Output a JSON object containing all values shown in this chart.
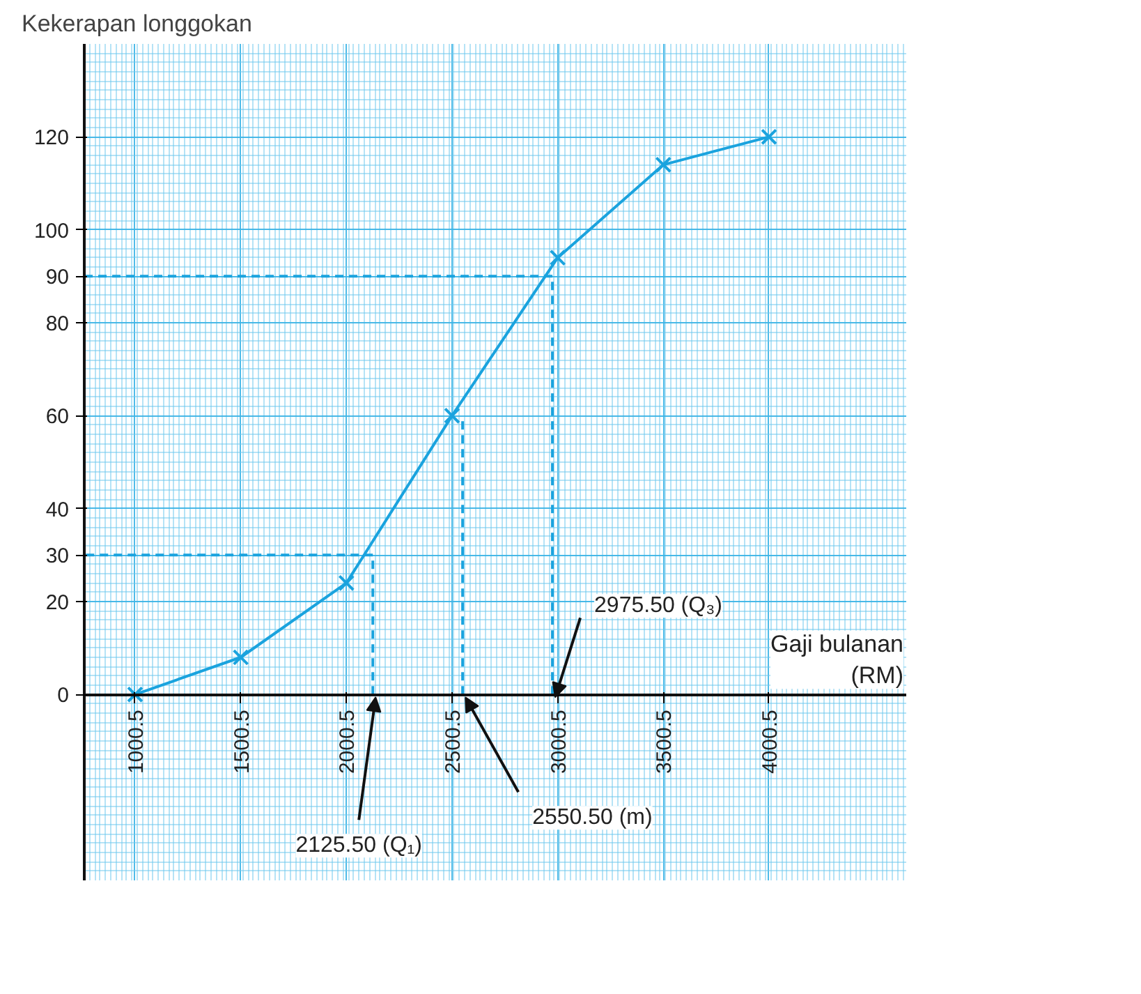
{
  "chart_data": {
    "type": "line",
    "ylabel": "Kekerapan longgokan",
    "xlabel": "Gaji bulanan\n(RM)",
    "xlim": [
      760,
      4650
    ],
    "ylim": [
      -40,
      140
    ],
    "xticks": [
      1000.5,
      1500.5,
      2000.5,
      2500.5,
      3000.5,
      3500.5,
      4000.5
    ],
    "yticks": [
      0,
      20,
      30,
      40,
      60,
      80,
      90,
      100,
      120
    ],
    "grid": true,
    "marker": "cross",
    "line_style": "solid",
    "series": [
      {
        "x": [
          1000.5,
          1500.5,
          2000.5,
          2500.5,
          3000.5,
          3500.5,
          4000.5
        ],
        "values": [
          0,
          8,
          24,
          60,
          94,
          114,
          120
        ],
        "color": "#1aa3de"
      },
      {
        "x": [
          760,
          2125.5,
          2125.5
        ],
        "values": [
          30,
          30,
          0
        ],
        "color": "#1aa3de",
        "line_style": "dashed",
        "marker": "none"
      },
      {
        "x": [
          2550.5,
          2550.5
        ],
        "values": [
          60,
          0
        ],
        "color": "#1aa3de",
        "line_style": "dashed",
        "marker": "none"
      },
      {
        "x": [
          760,
          2975.5,
          2975.5
        ],
        "values": [
          90,
          90,
          0
        ],
        "color": "#1aa3de",
        "line_style": "dashed",
        "marker": "none"
      }
    ],
    "annotations": [
      {
        "text": "2125.50 (Q₁)",
        "x": 2125.5,
        "y": 0
      },
      {
        "text": "2550.50 (m)",
        "x": 2550.5,
        "y": 0
      },
      {
        "text": "2975.50 (Q₃)",
        "x": 2975.5,
        "y": 0
      }
    ]
  }
}
